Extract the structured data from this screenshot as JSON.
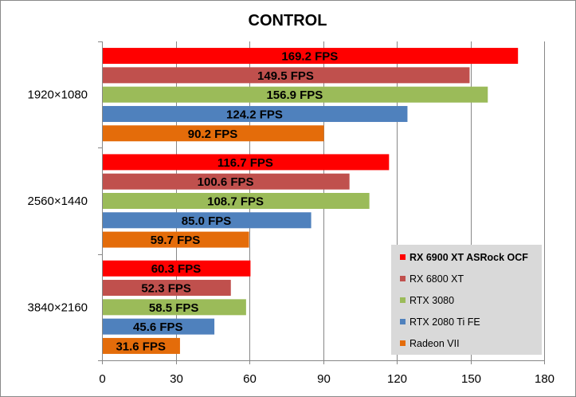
{
  "chart_data": {
    "type": "bar",
    "orientation": "horizontal",
    "title": "CONTROL",
    "categories": [
      "1920×1080",
      "2560×1440",
      "3840×2160"
    ],
    "series": [
      {
        "name": "RX 6900 XT ASRock OCF",
        "color": "#ff0000",
        "values": [
          169.2,
          116.7,
          60.3
        ],
        "labels": [
          "169.2 FPS",
          "116.7 FPS",
          "60.3 FPS"
        ],
        "bold_legend": true
      },
      {
        "name": "RX 6800 XT",
        "color": "#c0504d",
        "values": [
          149.5,
          100.6,
          52.3
        ],
        "labels": [
          "149.5 FPS",
          "100.6 FPS",
          "52.3 FPS"
        ]
      },
      {
        "name": "RTX 3080",
        "color": "#9bbb59",
        "values": [
          156.9,
          108.7,
          58.5
        ],
        "labels": [
          "156.9 FPS",
          "108.7 FPS",
          "58.5 FPS"
        ]
      },
      {
        "name": "RTX 2080 Ti FE",
        "color": "#4f81bd",
        "values": [
          124.2,
          85.0,
          45.6
        ],
        "labels": [
          "124.2 FPS",
          "85.0 FPS",
          "45.6 FPS"
        ]
      },
      {
        "name": "Radeon VII",
        "color": "#e46c0a",
        "values": [
          90.2,
          59.7,
          31.6
        ],
        "labels": [
          "90.2 FPS",
          "59.7 FPS",
          "31.6 FPS"
        ]
      }
    ],
    "xlim": [
      0,
      180
    ],
    "xticks": [
      0,
      30,
      60,
      90,
      120,
      150,
      180
    ],
    "xtick_labels": [
      "0",
      "30",
      "60",
      "90",
      "120",
      "150",
      "180"
    ],
    "grid": "vertical",
    "legend_position": "bottom-right"
  }
}
